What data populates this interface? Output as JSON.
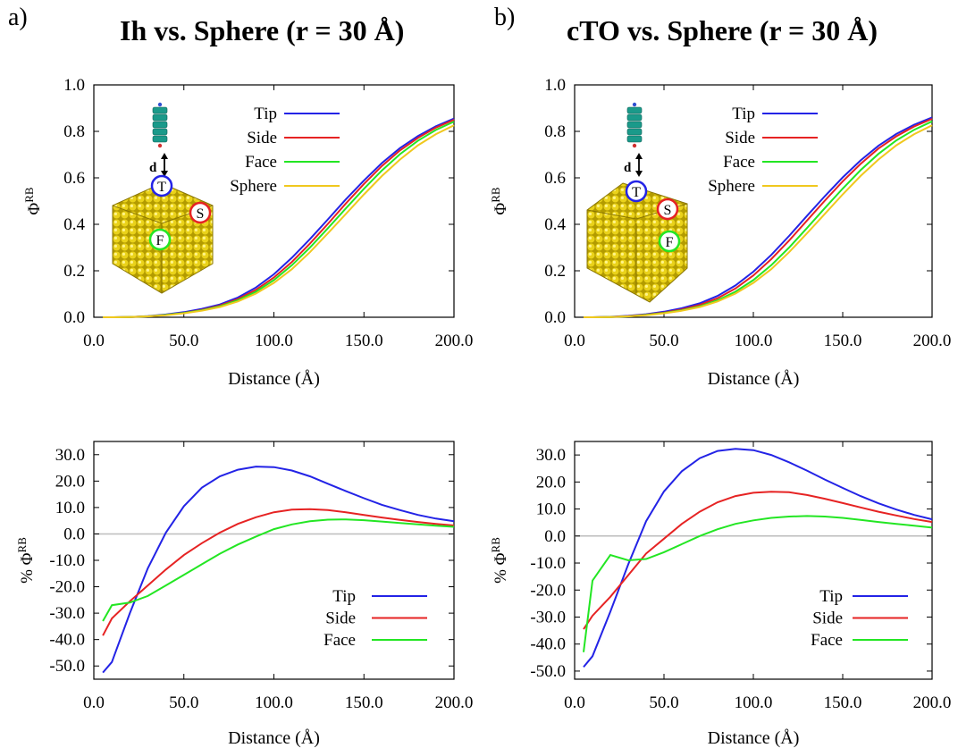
{
  "panels": {
    "a": {
      "letter": "a)",
      "title": "Ih vs. Sphere (r = 30 Å)"
    },
    "b": {
      "letter": "b)",
      "title": "cTO vs. Sphere (r = 30 Å)"
    }
  },
  "inset_labels": {
    "distance": "d",
    "tip": "T",
    "side": "S",
    "face": "F"
  },
  "colors": {
    "Tip": "#2323e6",
    "Side": "#e62323",
    "Face": "#23e623",
    "Sphere": "#f0c81e",
    "zero_line": "#bdbdbd"
  },
  "chart_data": [
    {
      "id": "a-top",
      "type": "line",
      "xlabel": "Distance (Å)",
      "ylabel": "Φ^RB",
      "xlim": [
        0,
        200
      ],
      "ylim": [
        0,
        1
      ],
      "xticks": [
        "0.0",
        "50.0",
        "100.0",
        "150.0",
        "200.0"
      ],
      "yticks": [
        "0.0",
        "0.2",
        "0.4",
        "0.6",
        "0.8",
        "1.0"
      ],
      "legend_position": "top-center",
      "x": [
        5,
        10,
        20,
        30,
        40,
        50,
        60,
        70,
        80,
        90,
        100,
        110,
        120,
        130,
        140,
        150,
        160,
        170,
        180,
        190,
        200
      ],
      "series": [
        {
          "name": "Tip",
          "values": [
            0.0,
            0.0,
            0.001,
            0.005,
            0.012,
            0.022,
            0.036,
            0.055,
            0.085,
            0.128,
            0.185,
            0.256,
            0.336,
            0.421,
            0.508,
            0.589,
            0.664,
            0.728,
            0.78,
            0.822,
            0.855
          ]
        },
        {
          "name": "Side",
          "values": [
            0.0,
            0.0,
            0.001,
            0.004,
            0.01,
            0.019,
            0.032,
            0.05,
            0.078,
            0.118,
            0.171,
            0.238,
            0.317,
            0.402,
            0.49,
            0.574,
            0.651,
            0.718,
            0.772,
            0.816,
            0.85
          ]
        },
        {
          "name": "Face",
          "values": [
            0.0,
            0.0,
            0.001,
            0.004,
            0.01,
            0.018,
            0.03,
            0.047,
            0.073,
            0.11,
            0.16,
            0.224,
            0.3,
            0.383,
            0.469,
            0.553,
            0.632,
            0.702,
            0.76,
            0.806,
            0.842
          ]
        },
        {
          "name": "Sphere",
          "values": [
            0.0,
            0.0,
            0.001,
            0.004,
            0.009,
            0.017,
            0.028,
            0.044,
            0.068,
            0.102,
            0.148,
            0.207,
            0.28,
            0.361,
            0.445,
            0.529,
            0.608,
            0.679,
            0.74,
            0.788,
            0.826
          ]
        }
      ]
    },
    {
      "id": "a-bottom",
      "type": "line",
      "xlabel": "Distance (Å)",
      "ylabel": "% Φ^RB",
      "xlim": [
        0,
        200
      ],
      "ylim": [
        -55,
        35
      ],
      "xticks": [
        "0.0",
        "50.0",
        "100.0",
        "150.0",
        "200.0"
      ],
      "yticks": [
        "-50.0",
        "-40.0",
        "-30.0",
        "-20.0",
        "-10.0",
        "0.0",
        "10.0",
        "20.0",
        "30.0"
      ],
      "legend_position": "bottom-right",
      "x": [
        5,
        10,
        20,
        30,
        40,
        50,
        60,
        70,
        80,
        90,
        100,
        110,
        120,
        130,
        140,
        150,
        160,
        170,
        180,
        190,
        200
      ],
      "series": [
        {
          "name": "Tip",
          "values": [
            -52.5,
            -48.5,
            -30.0,
            -13.0,
            0.5,
            10.5,
            17.5,
            21.8,
            24.3,
            25.5,
            25.3,
            24.0,
            21.8,
            19.0,
            16.2,
            13.5,
            11.0,
            9.0,
            7.2,
            5.8,
            4.8
          ]
        },
        {
          "name": "Side",
          "values": [
            -38.5,
            -32.0,
            -25.5,
            -19.5,
            -13.5,
            -8.0,
            -3.5,
            0.5,
            3.8,
            6.3,
            8.2,
            9.2,
            9.4,
            9.0,
            8.2,
            7.2,
            6.2,
            5.3,
            4.5,
            3.8,
            3.2
          ]
        },
        {
          "name": "Face",
          "values": [
            -33.0,
            -27.0,
            -26.0,
            -23.5,
            -19.5,
            -15.5,
            -11.5,
            -7.5,
            -4.0,
            -1.0,
            1.8,
            3.6,
            4.8,
            5.4,
            5.5,
            5.2,
            4.7,
            4.1,
            3.6,
            3.1,
            2.7
          ]
        }
      ]
    },
    {
      "id": "b-top",
      "type": "line",
      "xlabel": "Distance (Å)",
      "ylabel": "Φ^RB",
      "xlim": [
        0,
        200
      ],
      "ylim": [
        0,
        1
      ],
      "xticks": [
        "0.0",
        "50.0",
        "100.0",
        "150.0",
        "200.0"
      ],
      "yticks": [
        "0.0",
        "0.2",
        "0.4",
        "0.6",
        "0.8",
        "1.0"
      ],
      "legend_position": "top-center",
      "x": [
        5,
        10,
        20,
        30,
        40,
        50,
        60,
        70,
        80,
        90,
        100,
        110,
        120,
        130,
        140,
        150,
        160,
        170,
        180,
        190,
        200
      ],
      "series": [
        {
          "name": "Tip",
          "values": [
            0.0,
            0.0,
            0.002,
            0.006,
            0.013,
            0.024,
            0.039,
            0.06,
            0.092,
            0.137,
            0.196,
            0.268,
            0.35,
            0.436,
            0.521,
            0.602,
            0.675,
            0.738,
            0.789,
            0.829,
            0.86
          ]
        },
        {
          "name": "Side",
          "values": [
            0.0,
            0.0,
            0.001,
            0.005,
            0.011,
            0.02,
            0.034,
            0.053,
            0.082,
            0.124,
            0.18,
            0.25,
            0.33,
            0.416,
            0.502,
            0.585,
            0.66,
            0.726,
            0.779,
            0.821,
            0.854
          ]
        },
        {
          "name": "Face",
          "values": [
            0.0,
            0.0,
            0.001,
            0.004,
            0.01,
            0.018,
            0.03,
            0.047,
            0.073,
            0.11,
            0.16,
            0.224,
            0.3,
            0.384,
            0.47,
            0.554,
            0.633,
            0.703,
            0.761,
            0.807,
            0.843
          ]
        },
        {
          "name": "Sphere",
          "values": [
            0.0,
            0.0,
            0.001,
            0.004,
            0.009,
            0.017,
            0.028,
            0.044,
            0.068,
            0.102,
            0.148,
            0.207,
            0.28,
            0.361,
            0.445,
            0.529,
            0.608,
            0.679,
            0.74,
            0.788,
            0.826
          ]
        }
      ]
    },
    {
      "id": "b-bottom",
      "type": "line",
      "xlabel": "Distance (Å)",
      "ylabel": "% Φ^RB",
      "xlim": [
        0,
        200
      ],
      "ylim": [
        -53,
        35
      ],
      "xticks": [
        "0.0",
        "50.0",
        "100.0",
        "150.0",
        "200.0"
      ],
      "yticks": [
        "-50.0",
        "-40.0",
        "-30.0",
        "-20.0",
        "-10.0",
        "0.0",
        "10.0",
        "20.0",
        "30.0"
      ],
      "legend_position": "bottom-right",
      "x": [
        5,
        10,
        20,
        30,
        40,
        50,
        60,
        70,
        80,
        90,
        100,
        110,
        120,
        130,
        140,
        150,
        160,
        170,
        180,
        190,
        200
      ],
      "series": [
        {
          "name": "Tip",
          "values": [
            -48.5,
            -44.5,
            -28.0,
            -10.5,
            5.5,
            16.5,
            24.0,
            28.8,
            31.5,
            32.3,
            31.8,
            30.0,
            27.3,
            24.2,
            20.9,
            17.8,
            14.8,
            12.1,
            9.8,
            7.8,
            6.2
          ]
        },
        {
          "name": "Side",
          "values": [
            -34.5,
            -29.5,
            -22.5,
            -14.5,
            -6.5,
            -1.0,
            4.5,
            9.0,
            12.5,
            14.8,
            16.0,
            16.4,
            16.2,
            15.2,
            13.8,
            12.2,
            10.6,
            9.0,
            7.6,
            6.3,
            5.2
          ]
        },
        {
          "name": "Face",
          "values": [
            -43.0,
            -16.5,
            -7.0,
            -9.0,
            -8.5,
            -6.0,
            -3.0,
            0.0,
            2.5,
            4.5,
            5.8,
            6.7,
            7.2,
            7.4,
            7.2,
            6.7,
            6.0,
            5.2,
            4.5,
            3.8,
            3.1
          ]
        }
      ]
    }
  ]
}
